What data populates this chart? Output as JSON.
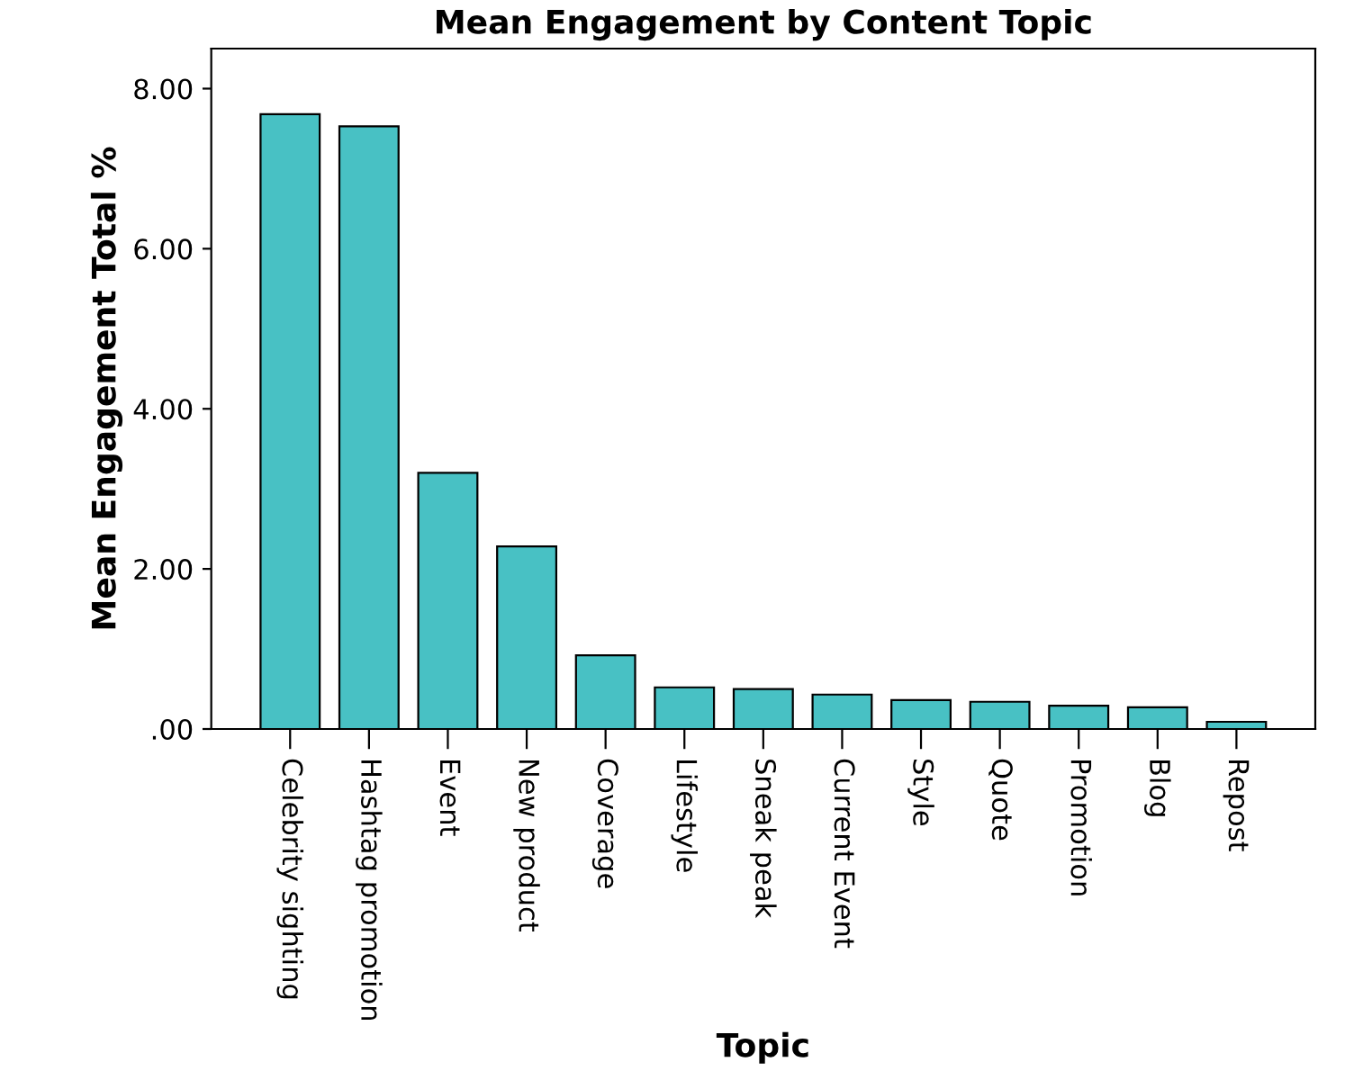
{
  "chart_data": {
    "type": "bar",
    "title": "Mean Engagement by Content Topic",
    "xlabel": "Topic",
    "ylabel": "Mean Engagement Total %",
    "categories": [
      "Celebrity sighting",
      "Hashtag promotion",
      "Event",
      "New product",
      "Coverage",
      "Lifestyle",
      "Sneak peak",
      "Current Event",
      "Style",
      "Quote",
      "Promotion",
      "Blog",
      "Repost"
    ],
    "values": [
      7.68,
      7.53,
      3.2,
      2.28,
      0.92,
      0.52,
      0.5,
      0.43,
      0.36,
      0.34,
      0.29,
      0.27,
      0.09
    ],
    "color": "#48c1c4",
    "ylim": [
      0,
      8.5
    ],
    "yticks": [
      {
        "value": 0,
        "label": ".00"
      },
      {
        "value": 2,
        "label": "2.00"
      },
      {
        "value": 4,
        "label": "4.00"
      },
      {
        "value": 6,
        "label": "6.00"
      },
      {
        "value": 8,
        "label": "8.00"
      }
    ],
    "grid": false,
    "legend": false
  }
}
